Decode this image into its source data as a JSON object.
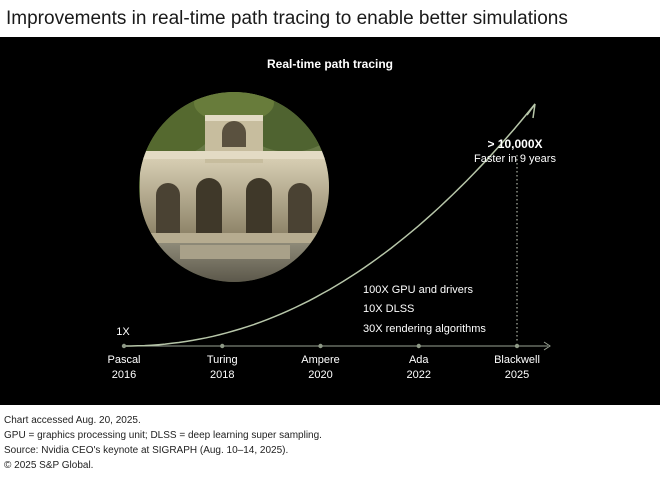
{
  "title": "Improvements in real-time path tracing to enable better simulations",
  "panel_title": "Real-time path tracing",
  "image_alt": "Rendered courtyard with ornate stone arcade and trees",
  "callout": {
    "line1": "> 10,000X",
    "line2": "Faster in 9 years"
  },
  "start_label": "1X",
  "contributions": [
    "100X GPU and drivers",
    "10X DLSS",
    "30X rendering algorithms"
  ],
  "colors": {
    "background": "#000000",
    "curve": "#b7c6a9",
    "text": "#ffffff",
    "axis": "#9aa394"
  },
  "chart_data": {
    "type": "line",
    "title": "Real-time path tracing",
    "categories": [
      {
        "name": "Pascal",
        "year": "2016"
      },
      {
        "name": "Turing",
        "year": "2018"
      },
      {
        "name": "Ampere",
        "year": "2020"
      },
      {
        "name": "Ada",
        "year": "2022"
      },
      {
        "name": "Blackwell",
        "year": "2025"
      }
    ],
    "x": [
      2016,
      2025
    ],
    "y": [
      1,
      10000
    ],
    "y_labels": [
      "1X",
      "> 10,000X"
    ],
    "xlabel": "",
    "ylabel": ""
  },
  "footer": [
    "Chart accessed Aug. 20, 2025.",
    "GPU = graphics processing unit; DLSS = deep learning super sampling.",
    "Source: Nvidia CEO's keynote at SIGRAPH (Aug. 10–14, 2025).",
    "© 2025 S&P Global."
  ]
}
